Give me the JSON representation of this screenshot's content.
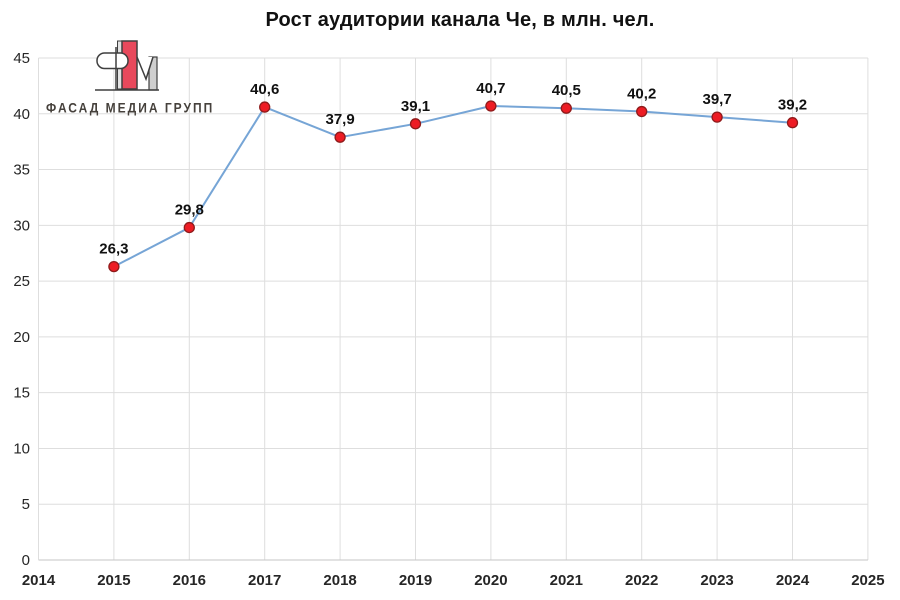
{
  "chart": {
    "title": "Рост аудитории канала Че, в млн. чел."
  },
  "logo": {
    "text": "ФАСАД МЕДИА ГРУПП",
    "red": "#e8495c",
    "gray": "#cfcfcf",
    "outline": "#3f3f3f",
    "text_color": "#46413c"
  },
  "chart_data": {
    "type": "line",
    "title": "Рост аудитории канала Че, в млн. чел.",
    "x": [
      2015,
      2016,
      2017,
      2018,
      2019,
      2020,
      2021,
      2022,
      2023,
      2024
    ],
    "values": [
      26.3,
      29.8,
      40.6,
      37.9,
      39.1,
      40.7,
      40.5,
      40.2,
      39.7,
      39.2
    ],
    "point_labels": [
      "26,3",
      "29,8",
      "40,6",
      "37,9",
      "39,1",
      "40,7",
      "40,5",
      "40,2",
      "39,7",
      "39,2"
    ],
    "x_ticks": [
      2014,
      2015,
      2016,
      2017,
      2018,
      2019,
      2020,
      2021,
      2022,
      2023,
      2024,
      2025
    ],
    "y_ticks": [
      0,
      5,
      10,
      15,
      20,
      25,
      30,
      35,
      40,
      45
    ],
    "xlim": [
      2014,
      2025
    ],
    "ylim": [
      0,
      45
    ],
    "xlabel": "",
    "ylabel": "",
    "grid": true,
    "legend": false,
    "colors": {
      "line": "#76a5d6",
      "marker_fill": "#ed1c24",
      "marker_stroke": "#8e1b1b",
      "gridline": "#dedede",
      "axis": "#c6c6c6",
      "tick_text": "#262626",
      "label_text": "#111111"
    }
  }
}
